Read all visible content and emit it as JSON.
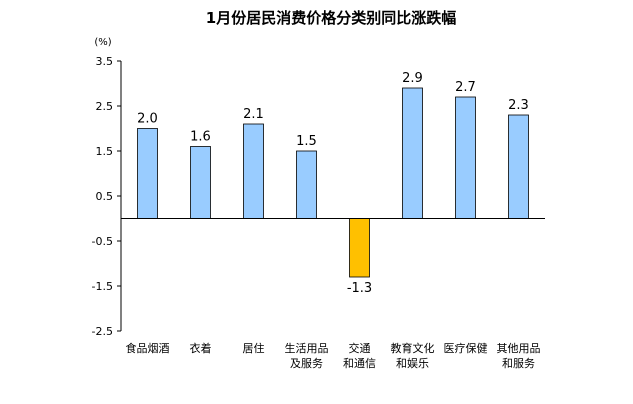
{
  "chart_data": {
    "type": "bar",
    "title": "1月份居民消费价格分类别同比涨跌幅",
    "unit_label": "(%)",
    "xlabel": "",
    "ylabel": "",
    "ylim": [
      -2.5,
      3.5
    ],
    "yticks": [
      3.5,
      2.5,
      1.5,
      0.5,
      -0.5,
      -1.5,
      -2.5
    ],
    "ytick_labels": [
      "3.5",
      "2.5",
      "1.5",
      "0.5",
      "-0.5",
      "-1.5",
      "-2.5"
    ],
    "grid": false,
    "legend": "none",
    "categories": [
      [
        "食品烟酒"
      ],
      [
        "衣着"
      ],
      [
        "居住"
      ],
      [
        "生活用品",
        "及服务"
      ],
      [
        "交通",
        "和通信"
      ],
      [
        "教育文化",
        "和娱乐"
      ],
      [
        "医疗保健"
      ],
      [
        "其他用品",
        "和服务"
      ]
    ],
    "values": [
      2.0,
      1.6,
      2.1,
      1.5,
      -1.3,
      2.9,
      2.7,
      2.3
    ],
    "value_labels": [
      "2.0",
      "1.6",
      "2.1",
      "1.5",
      "-1.3",
      "2.9",
      "2.7",
      "2.3"
    ],
    "colors": {
      "positive": "#99ccff",
      "negative": "#ffc000",
      "border": "#000000"
    }
  }
}
